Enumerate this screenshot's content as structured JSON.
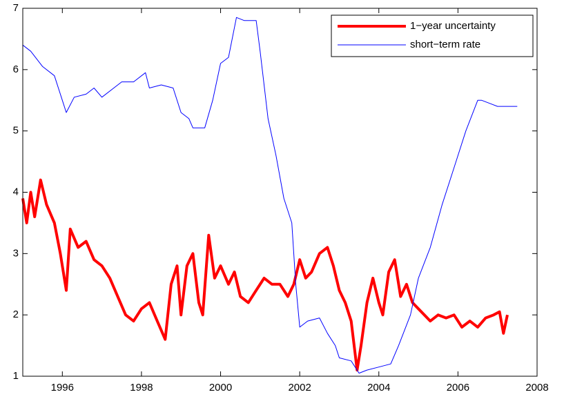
{
  "chart_data": {
    "type": "line",
    "xlim": [
      1995,
      2008
    ],
    "xticks": [
      1996,
      1998,
      2000,
      2002,
      2004,
      2006,
      2008
    ],
    "ylim": [
      1,
      7
    ],
    "yticks": [
      1,
      2,
      3,
      4,
      5,
      6,
      7
    ],
    "grid": false,
    "legend": "upper right",
    "series": [
      {
        "name": "1−year uncertainty",
        "color": "#ff0000",
        "x": [
          1995.0,
          1995.1,
          1995.2,
          1995.3,
          1995.45,
          1995.6,
          1995.8,
          1995.95,
          1996.1,
          1996.2,
          1996.4,
          1996.6,
          1996.8,
          1997.0,
          1997.2,
          1997.4,
          1997.6,
          1997.8,
          1998.0,
          1998.2,
          1998.4,
          1998.6,
          1998.75,
          1998.9,
          1999.0,
          1999.15,
          1999.3,
          1999.45,
          1999.55,
          1999.7,
          1999.85,
          2000.0,
          2000.2,
          2000.35,
          2000.5,
          2000.7,
          2000.9,
          2001.1,
          2001.3,
          2001.5,
          2001.7,
          2001.85,
          2002.0,
          2002.15,
          2002.3,
          2002.5,
          2002.7,
          2002.85,
          2003.0,
          2003.15,
          2003.3,
          2003.45,
          2003.55,
          2003.7,
          2003.85,
          2004.0,
          2004.1,
          2004.25,
          2004.4,
          2004.55,
          2004.7,
          2004.85,
          2005.0,
          2005.15,
          2005.3,
          2005.5,
          2005.7,
          2005.9,
          2006.1,
          2006.3,
          2006.5,
          2006.7,
          2006.9,
          2007.05,
          2007.15,
          2007.25
        ],
        "values": [
          3.9,
          3.5,
          4.0,
          3.6,
          4.2,
          3.8,
          3.5,
          3.0,
          2.4,
          3.4,
          3.1,
          3.2,
          2.9,
          2.8,
          2.6,
          2.3,
          2.0,
          1.9,
          2.1,
          2.2,
          1.9,
          1.6,
          2.5,
          2.8,
          2.0,
          2.8,
          3.0,
          2.2,
          2.0,
          3.3,
          2.6,
          2.8,
          2.5,
          2.7,
          2.3,
          2.2,
          2.4,
          2.6,
          2.5,
          2.5,
          2.3,
          2.5,
          2.9,
          2.6,
          2.7,
          3.0,
          3.1,
          2.8,
          2.4,
          2.2,
          1.9,
          1.1,
          1.5,
          2.2,
          2.6,
          2.2,
          2.0,
          2.7,
          2.9,
          2.3,
          2.5,
          2.2,
          2.1,
          2.0,
          1.9,
          2.0,
          1.95,
          2.0,
          1.8,
          1.9,
          1.8,
          1.95,
          2.0,
          2.05,
          1.7,
          2.0
        ]
      },
      {
        "name": "short−term rate",
        "color": "#0000ff",
        "x": [
          1995.0,
          1995.2,
          1995.5,
          1995.8,
          1996.0,
          1996.1,
          1996.3,
          1996.6,
          1996.8,
          1997.0,
          1997.3,
          1997.5,
          1997.8,
          1998.1,
          1998.2,
          1998.5,
          1998.8,
          1999.0,
          1999.2,
          1999.3,
          1999.6,
          1999.8,
          2000.0,
          2000.2,
          2000.4,
          2000.6,
          2000.9,
          2001.0,
          2001.2,
          2001.4,
          2001.6,
          2001.8,
          2001.9,
          2002.0,
          2002.2,
          2002.5,
          2002.7,
          2002.9,
          2003.0,
          2003.3,
          2003.5,
          2003.7,
          2004.0,
          2004.3,
          2004.5,
          2004.8,
          2005.0,
          2005.3,
          2005.6,
          2005.9,
          2006.2,
          2006.5,
          2006.6,
          2006.8,
          2007.0,
          2007.3,
          2007.5
        ],
        "values": [
          6.4,
          6.3,
          6.05,
          5.9,
          5.5,
          5.3,
          5.55,
          5.6,
          5.7,
          5.55,
          5.7,
          5.8,
          5.8,
          5.95,
          5.7,
          5.75,
          5.7,
          5.3,
          5.2,
          5.05,
          5.05,
          5.5,
          6.1,
          6.2,
          6.85,
          6.8,
          6.8,
          6.3,
          5.2,
          4.6,
          3.9,
          3.5,
          2.5,
          1.8,
          1.9,
          1.95,
          1.7,
          1.5,
          1.3,
          1.25,
          1.05,
          1.1,
          1.15,
          1.2,
          1.5,
          2.0,
          2.6,
          3.1,
          3.8,
          4.4,
          5.0,
          5.5,
          5.5,
          5.45,
          5.4,
          5.4,
          5.4
        ]
      }
    ]
  }
}
